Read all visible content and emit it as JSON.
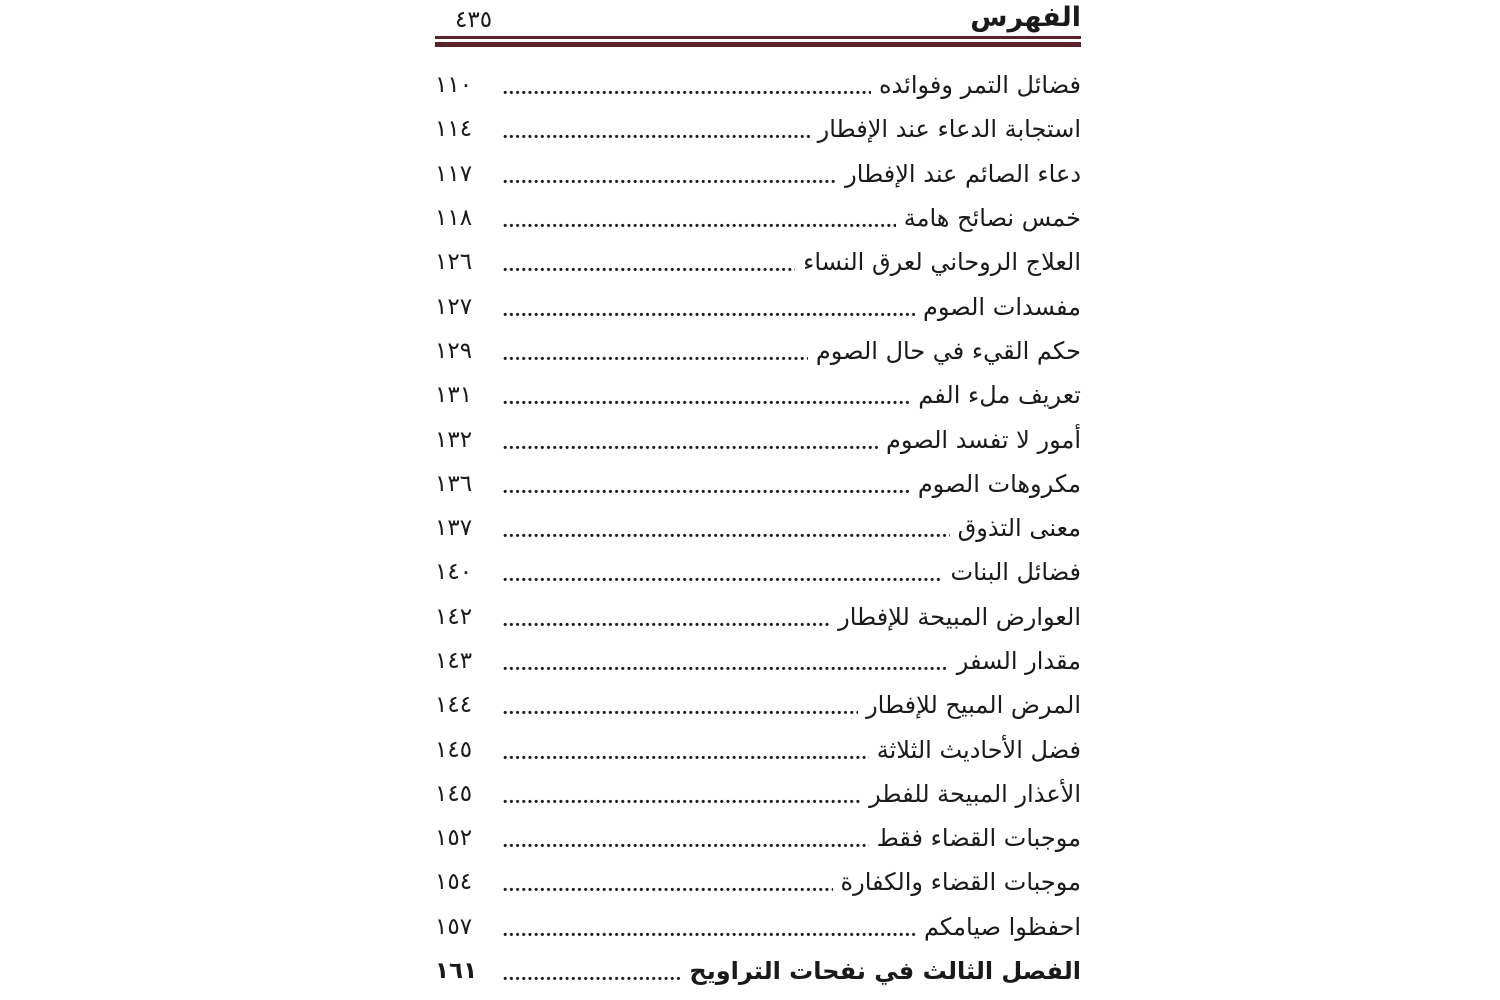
{
  "page": {
    "header": {
      "title": "الفهرس",
      "page_number": "٤٣٥"
    }
  },
  "colors": {
    "rule": "#5a2228",
    "text": "#1a1a1a"
  },
  "toc": {
    "entries": [
      {
        "title": "فضائل التمر وفوائده",
        "page": "١١٠",
        "emphasis": false
      },
      {
        "title": "استجابة الدعاء عند الإفطار",
        "page": "١١٤",
        "emphasis": false
      },
      {
        "title": "دعاء الصائم عند الإفطار",
        "page": "١١٧",
        "emphasis": false
      },
      {
        "title": "خمس نصائح هامة",
        "page": "١١٨",
        "emphasis": false
      },
      {
        "title": "العلاج الروحاني لعرق النساء",
        "page": "١٢٦",
        "emphasis": false
      },
      {
        "title": "مفسدات الصوم",
        "page": "١٢٧",
        "emphasis": false
      },
      {
        "title": "حكم القيء في حال الصوم",
        "page": "١٢٩",
        "emphasis": false
      },
      {
        "title": "تعريف ملء الفم",
        "page": "١٣١",
        "emphasis": false
      },
      {
        "title": "أمور لا تفسد الصوم",
        "page": "١٣٢",
        "emphasis": false
      },
      {
        "title": "مكروهات الصوم",
        "page": "١٣٦",
        "emphasis": false
      },
      {
        "title": "معنى التذوق",
        "page": "١٣٧",
        "emphasis": false
      },
      {
        "title": "فضائل البنات",
        "page": "١٤٠",
        "emphasis": false
      },
      {
        "title": "العوارض المبيحة للإفطار",
        "page": "١٤٢",
        "emphasis": false
      },
      {
        "title": "مقدار السفر",
        "page": "١٤٣",
        "emphasis": false
      },
      {
        "title": "المرض المبيح للإفطار",
        "page": "١٤٤",
        "emphasis": false
      },
      {
        "title": "فضل الأحاديث الثلاثة",
        "page": "١٤٥",
        "emphasis": false
      },
      {
        "title": "الأعذار المبيحة للفطر",
        "page": "١٤٥",
        "emphasis": false
      },
      {
        "title": "موجبات القضاء فقط",
        "page": "١٥٢",
        "emphasis": false
      },
      {
        "title": "موجبات القضاء والكفارة",
        "page": "١٥٤",
        "emphasis": false
      },
      {
        "title": "احفظوا صيامكم",
        "page": "١٥٧",
        "emphasis": false
      },
      {
        "title": "الفصل الثالث في نفحات التراويح",
        "page": "١٦١",
        "emphasis": true
      }
    ]
  }
}
